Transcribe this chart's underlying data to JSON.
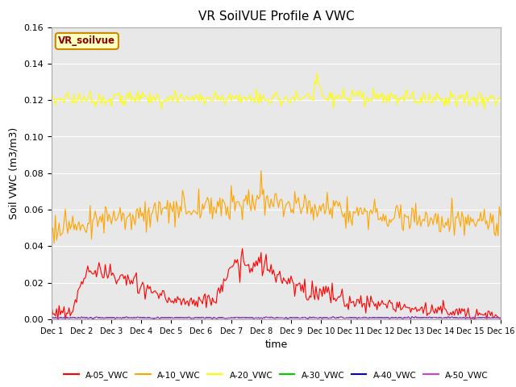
{
  "title": "VR SoilVUE Profile A VWC",
  "xlabel": "time",
  "ylabel": "Soil VWC (m3/m3)",
  "ylim": [
    0.0,
    0.16
  ],
  "xlim": [
    0,
    360
  ],
  "bg_color": "#e8e8e8",
  "series": [
    {
      "name": "A-05_VWC",
      "color": "#ff0000"
    },
    {
      "name": "A-10_VWC",
      "color": "#ffa500"
    },
    {
      "name": "A-20_VWC",
      "color": "#ffff00"
    },
    {
      "name": "A-30_VWC",
      "color": "#00cc00"
    },
    {
      "name": "A-40_VWC",
      "color": "#0000cc"
    },
    {
      "name": "A-50_VWC",
      "color": "#cc44cc"
    }
  ],
  "xtick_labels": [
    "Dec 1",
    "Dec 2",
    "Dec 3",
    "Dec 4",
    "Dec 5",
    "Dec 6",
    "Dec 7",
    "Dec 8",
    "Dec 9",
    "Dec 9",
    "Dec 10",
    "Dec 11",
    "Dec 12",
    "Dec 13",
    "Dec 14",
    "Dec 15",
    "Dec 16"
  ],
  "label_box_text": "VR_soilvue",
  "label_box_bg": "#ffffc0",
  "label_box_edge": "#cc8800",
  "label_box_text_color": "#8b0000",
  "figsize": [
    6.4,
    4.8
  ],
  "dpi": 100
}
